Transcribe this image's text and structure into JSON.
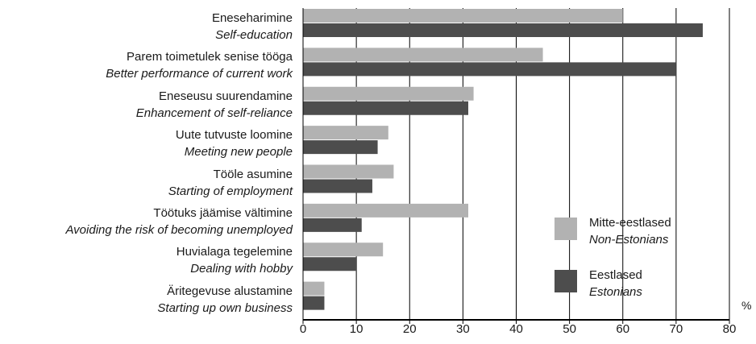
{
  "chart_data": {
    "type": "bar",
    "orientation": "horizontal",
    "categories": [
      {
        "et": "Eneseharimine",
        "en": "Self-education"
      },
      {
        "et": "Parem toimetulek senise tööga",
        "en": "Better performance of current work"
      },
      {
        "et": "Eneseusu suurendamine",
        "en": "Enhancement of self-reliance"
      },
      {
        "et": "Uute tutvuste loomine",
        "en": "Meeting new people"
      },
      {
        "et": "Tööle asumine",
        "en": "Starting of employment"
      },
      {
        "et": "Töötuks jäämise vältimine",
        "en": "Avoiding the risk of becoming unemployed"
      },
      {
        "et": "Huvialaga tegelemine",
        "en": "Dealing with hobby"
      },
      {
        "et": "Äritegevuse alustamine",
        "en": "Starting up own business"
      }
    ],
    "series": [
      {
        "name_et": "Mitte-eestlased",
        "name_en": "Non-Estonians",
        "color": "#b2b2b2",
        "values": [
          60,
          45,
          32,
          16,
          17,
          31,
          15,
          4
        ]
      },
      {
        "name_et": "Eestlased",
        "name_en": "Estonians",
        "color": "#4d4d4d",
        "values": [
          75,
          70,
          31,
          14,
          13,
          11,
          10,
          4
        ]
      }
    ],
    "xlim": [
      0,
      80
    ],
    "xticks": [
      "0",
      "10",
      "20",
      "30",
      "40",
      "50",
      "60",
      "70",
      "80"
    ],
    "unit": "%",
    "grid": true,
    "legend_position": "right"
  }
}
